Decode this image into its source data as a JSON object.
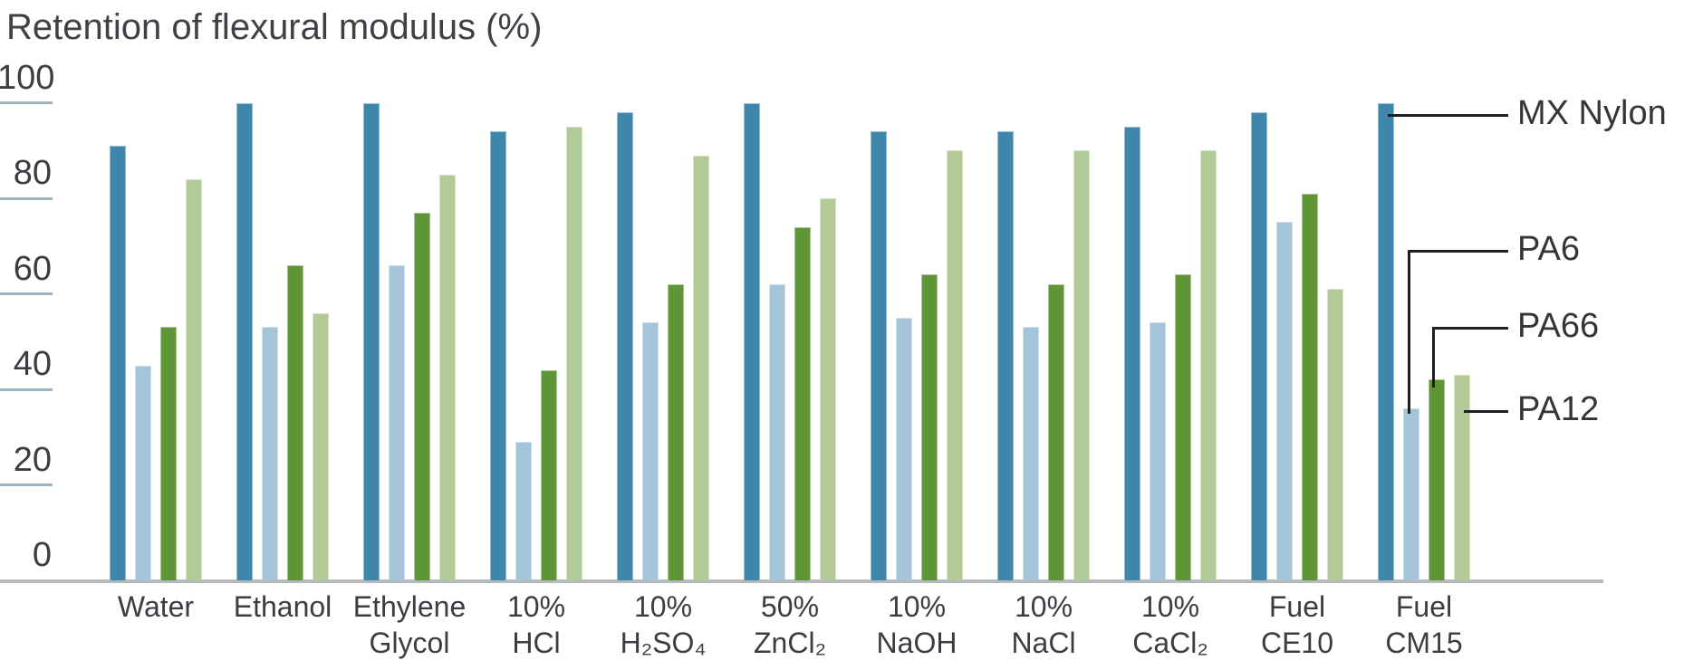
{
  "chart_data": {
    "type": "bar",
    "title": "Retention of flexural modulus (%)",
    "ylabel": "Retention of flexural modulus (%)",
    "ylim": [
      0,
      100
    ],
    "yticks": [
      0,
      20,
      40,
      60,
      80,
      100
    ],
    "grid": "short tick stubs on left edge only",
    "legend_position": "right-side callout lines to last group",
    "categories": [
      "Water",
      "Ethanol",
      "Ethylene Glycol",
      "10% HCl",
      "10% H₂SO₄",
      "50% ZnCl₂",
      "10% NaOH",
      "10% NaCl",
      "10% CaCl₂",
      "Fuel CE10",
      "Fuel CM15"
    ],
    "category_label_lines": [
      [
        "Water"
      ],
      [
        "Ethanol"
      ],
      [
        "Ethylene",
        "Glycol"
      ],
      [
        "10%",
        "HCl"
      ],
      [
        "10%",
        "H₂SO₄"
      ],
      [
        "50%",
        "ZnCl₂"
      ],
      [
        "10%",
        "NaOH"
      ],
      [
        "10%",
        "NaCl"
      ],
      [
        "10%",
        "CaCl₂"
      ],
      [
        "Fuel",
        "CE10"
      ],
      [
        "Fuel",
        "CM15"
      ]
    ],
    "series": [
      {
        "name": "MX Nylon",
        "color": "#3e86ab",
        "values": [
          91,
          100,
          100,
          94,
          98,
          100,
          94,
          94,
          95,
          98,
          100
        ]
      },
      {
        "name": "PA6",
        "color": "#a3c4d9",
        "values": [
          45,
          53,
          66,
          29,
          54,
          62,
          55,
          53,
          54,
          75,
          36
        ]
      },
      {
        "name": "PA66",
        "color": "#5d9537",
        "values": [
          53,
          66,
          77,
          44,
          62,
          74,
          64,
          62,
          64,
          81,
          42
        ]
      },
      {
        "name": "PA12",
        "color": "#b2ca96",
        "values": [
          84,
          56,
          85,
          95,
          89,
          80,
          90,
          90,
          90,
          61,
          43
        ]
      }
    ],
    "colors": {
      "axis_line": "#b6b9bc",
      "tick_stub": "#9db4c1",
      "text": "#3a3d41",
      "callout_line": "#1f1f1f"
    }
  }
}
